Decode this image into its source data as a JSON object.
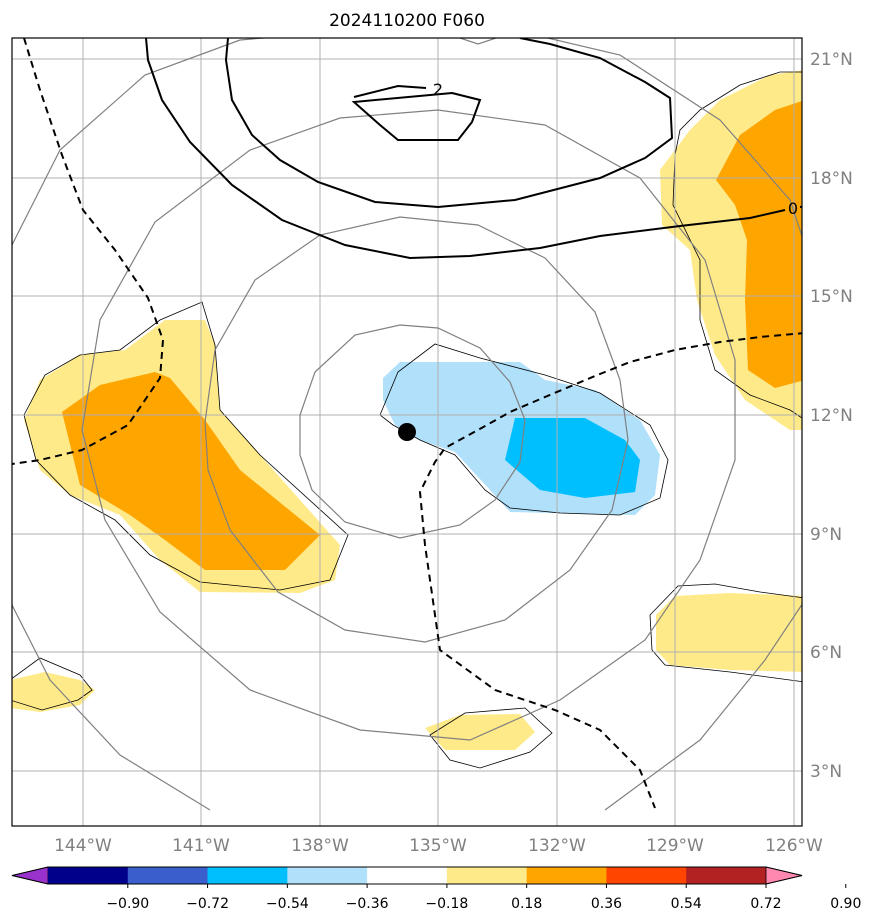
{
  "title": "2024110200 F060",
  "map": {
    "lat_labels": [
      "21°N",
      "18°N",
      "15°N",
      "12°N",
      "9°N",
      "6°N",
      "3°N"
    ],
    "lon_labels": [
      "144°W",
      "141°W",
      "138°W",
      "135°W",
      "132°W",
      "129°W",
      "126°W"
    ],
    "contour_labels": [
      "2",
      "0"
    ],
    "storm_center": {
      "lon": -135.8,
      "lat": 11.6
    },
    "colors": {
      "light_yellow": "#ffea8a",
      "orange": "#ffa500",
      "light_blue": "#b0e0fa",
      "deep_sky_blue": "#00bfff",
      "grid": "#b0b0b0",
      "range_rings": "#808080"
    }
  },
  "colorbar": {
    "ticks": [
      "−0.90",
      "−0.72",
      "−0.54",
      "−0.36",
      "−0.18",
      "0.18",
      "0.36",
      "0.54",
      "0.72",
      "0.90"
    ],
    "colors": [
      "#9932cc",
      "#00008b",
      "#3a5fcd",
      "#00bfff",
      "#b0e0fa",
      "#ffffff",
      "#ffea8a",
      "#ffa500",
      "#ff4500",
      "#b22222",
      "#ff88b0"
    ]
  }
}
